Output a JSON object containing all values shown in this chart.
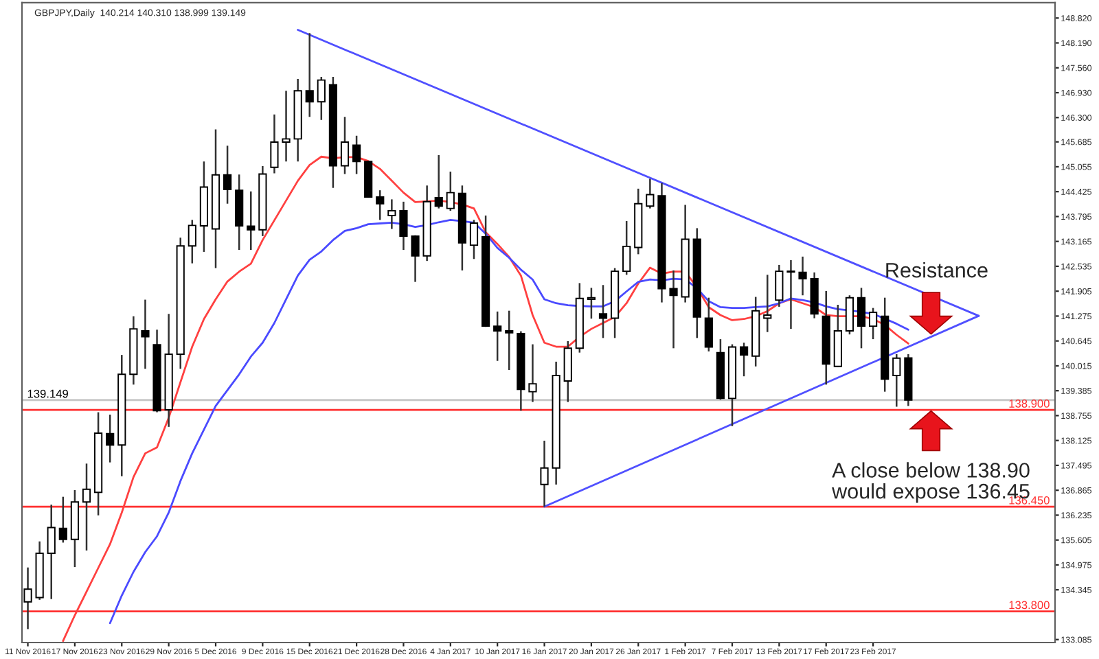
{
  "chart_data": {
    "type": "candlestick",
    "title": "GBPJPY,Daily  140.214 140.310 138.999 139.149",
    "categories": [
      "11 Nov 2016",
      null,
      null,
      null,
      "17 Nov 2016",
      null,
      null,
      null,
      "23 Nov 2016",
      null,
      null,
      null,
      "29 Nov 2016",
      null,
      null,
      null,
      "5 Dec 2016",
      null,
      null,
      null,
      "9 Dec 2016",
      null,
      null,
      null,
      "15 Dec 2016",
      null,
      null,
      null,
      "21 Dec 2016",
      null,
      null,
      null,
      "28 Dec 2016",
      null,
      null,
      null,
      "4 Jan 2017",
      null,
      null,
      null,
      "10 Jan 2017",
      null,
      null,
      null,
      "16 Jan 2017",
      null,
      null,
      null,
      "20 Jan 2017",
      null,
      null,
      null,
      "26 Jan 2017",
      null,
      null,
      null,
      "1 Feb 2017",
      null,
      null,
      null,
      "7 Feb 2017",
      null,
      null,
      null,
      "13 Feb 2017",
      null,
      null,
      null,
      "17 Feb 2017",
      null,
      null,
      null,
      "23 Feb 2017",
      null,
      null,
      null,
      null,
      null,
      null,
      null,
      null,
      null,
      null,
      null,
      null,
      null,
      null,
      null
    ],
    "ohlc": [
      [
        134.04,
        134.91,
        133.35,
        134.36
      ],
      [
        134.15,
        135.57,
        134.09,
        135.27
      ],
      [
        135.27,
        136.5,
        134.11,
        135.92
      ],
      [
        135.9,
        136.7,
        135.54,
        135.62
      ],
      [
        135.62,
        136.87,
        134.92,
        136.57
      ],
      [
        136.57,
        137.54,
        135.34,
        136.89
      ],
      [
        136.81,
        138.84,
        136.23,
        138.31
      ],
      [
        138.3,
        138.78,
        137.57,
        138.01
      ],
      [
        138.01,
        140.29,
        137.22,
        139.8
      ],
      [
        139.8,
        141.27,
        139.54,
        140.95
      ],
      [
        140.9,
        141.69,
        139.94,
        140.75
      ],
      [
        140.55,
        140.93,
        138.84,
        138.88
      ],
      [
        138.9,
        141.33,
        138.47,
        140.31
      ],
      [
        140.31,
        143.26,
        139.94,
        143.05
      ],
      [
        143.05,
        143.71,
        142.61,
        143.57
      ],
      [
        143.56,
        145.19,
        142.9,
        144.54
      ],
      [
        143.48,
        146.0,
        142.49,
        144.85
      ],
      [
        144.85,
        145.59,
        144.12,
        144.48
      ],
      [
        144.46,
        144.86,
        142.95,
        143.56
      ],
      [
        143.55,
        144.43,
        142.95,
        143.46
      ],
      [
        143.46,
        145.07,
        143.3,
        144.87
      ],
      [
        145.04,
        146.38,
        144.89,
        145.68
      ],
      [
        145.68,
        146.98,
        145.19,
        145.76
      ],
      [
        145.76,
        147.28,
        145.19,
        146.98
      ],
      [
        146.98,
        148.44,
        146.32,
        146.7
      ],
      [
        146.7,
        147.33,
        146.24,
        147.25
      ],
      [
        147.13,
        147.33,
        144.52,
        145.08
      ],
      [
        145.08,
        146.32,
        144.87,
        145.68
      ],
      [
        145.6,
        145.84,
        144.87,
        145.19
      ],
      [
        145.19,
        145.21,
        144.27,
        144.29
      ],
      [
        144.29,
        144.46,
        143.71,
        144.12
      ],
      [
        143.82,
        144.23,
        143.48,
        143.94
      ],
      [
        143.94,
        144.17,
        142.95,
        143.3
      ],
      [
        143.3,
        143.32,
        142.14,
        142.8
      ],
      [
        142.8,
        144.58,
        142.67,
        144.17
      ],
      [
        144.27,
        145.35,
        144.0,
        144.06
      ],
      [
        144.0,
        144.93,
        143.94,
        144.4
      ],
      [
        144.38,
        144.58,
        142.43,
        143.13
      ],
      [
        143.07,
        143.71,
        142.72,
        143.63
      ],
      [
        143.28,
        143.82,
        141.0,
        141.02
      ],
      [
        141.02,
        141.39,
        140.14,
        140.9
      ],
      [
        140.9,
        141.41,
        139.91,
        140.85
      ],
      [
        140.83,
        140.89,
        138.88,
        139.42
      ],
      [
        139.36,
        140.56,
        139.1,
        139.56
      ],
      [
        137.01,
        138.12,
        136.45,
        137.43
      ],
      [
        137.43,
        140.12,
        137.01,
        139.77
      ],
      [
        139.63,
        140.64,
        139.1,
        140.46
      ],
      [
        140.46,
        142.11,
        140.35,
        141.72
      ],
      [
        141.7,
        141.99,
        141.21,
        141.74
      ],
      [
        141.33,
        142.06,
        140.72,
        141.22
      ],
      [
        141.22,
        142.49,
        140.72,
        142.41
      ],
      [
        142.41,
        143.68,
        142.32,
        143.04
      ],
      [
        143.01,
        144.5,
        142.84,
        144.12
      ],
      [
        144.06,
        144.75,
        144.0,
        144.35
      ],
      [
        144.32,
        144.64,
        141.62,
        141.97
      ],
      [
        141.97,
        142.43,
        140.46,
        141.8
      ],
      [
        141.76,
        144.09,
        141.62,
        143.22
      ],
      [
        143.22,
        143.5,
        140.72,
        141.25
      ],
      [
        141.22,
        141.74,
        140.38,
        140.49
      ],
      [
        140.35,
        140.69,
        139.16,
        139.19
      ],
      [
        139.19,
        140.56,
        138.49,
        140.49
      ],
      [
        140.49,
        140.6,
        139.75,
        140.29
      ],
      [
        140.26,
        141.76,
        140.0,
        141.41
      ],
      [
        141.22,
        142.32,
        140.87,
        141.3
      ],
      [
        141.68,
        142.57,
        141.51,
        142.41
      ],
      [
        142.41,
        142.69,
        140.95,
        142.39
      ],
      [
        142.38,
        142.78,
        141.8,
        142.22
      ],
      [
        142.22,
        142.38,
        141.22,
        141.33
      ],
      [
        141.27,
        141.91,
        139.54,
        140.06
      ],
      [
        140.0,
        141.56,
        139.98,
        140.9
      ],
      [
        140.9,
        141.8,
        140.81,
        141.74
      ],
      [
        141.74,
        141.99,
        140.46,
        141.02
      ],
      [
        141.02,
        141.48,
        140.69,
        141.37
      ],
      [
        141.27,
        141.74,
        139.36,
        139.68
      ],
      [
        139.77,
        140.31,
        138.98,
        140.21
      ],
      [
        140.214,
        140.31,
        138.999,
        139.149
      ],
      null,
      null,
      null,
      null,
      null,
      null,
      null,
      null,
      null,
      null,
      null,
      null
    ],
    "series": [
      {
        "type": "line",
        "color": "#ff4040",
        "values": [
          null,
          null,
          null,
          133.05,
          133.7,
          134.3,
          134.9,
          135.5,
          136.3,
          137.2,
          137.8,
          137.95,
          138.7,
          139.6,
          140.5,
          141.2,
          141.7,
          142.15,
          142.4,
          142.6,
          143.2,
          143.7,
          144.2,
          144.7,
          145.1,
          145.31,
          145.27,
          145.3,
          145.3,
          145.2,
          145.0,
          144.7,
          144.4,
          144.16,
          144.18,
          144.2,
          144.16,
          144.1,
          144.0,
          143.4,
          143.1,
          142.77,
          142.3,
          141.3,
          140.6,
          140.5,
          140.5,
          140.75,
          140.95,
          141.1,
          141.25,
          141.6,
          142.1,
          142.5,
          142.35,
          142.4,
          142.4,
          142.0,
          141.5,
          141.3,
          141.17,
          141.2,
          141.27,
          141.4,
          141.6,
          141.7,
          141.6,
          141.5,
          141.3,
          141.27,
          141.27,
          141.27,
          141.2,
          141.05,
          140.8,
          140.58,
          null,
          null,
          null,
          null,
          null,
          null,
          null,
          null,
          null,
          null,
          null,
          null
        ]
      },
      {
        "type": "line",
        "color": "#4a4aff",
        "values": [
          null,
          null,
          null,
          null,
          null,
          null,
          null,
          133.5,
          134.2,
          134.8,
          135.3,
          135.7,
          136.3,
          137.1,
          137.8,
          138.4,
          139.0,
          139.4,
          139.8,
          140.25,
          140.6,
          141.1,
          141.7,
          142.3,
          142.7,
          142.91,
          143.2,
          143.43,
          143.5,
          143.6,
          143.62,
          143.64,
          143.6,
          143.53,
          143.58,
          143.65,
          143.71,
          143.68,
          143.64,
          143.36,
          143.0,
          142.75,
          142.45,
          142.2,
          141.7,
          141.6,
          141.55,
          141.53,
          141.52,
          141.52,
          141.65,
          141.9,
          142.14,
          142.2,
          142.18,
          142.22,
          142.2,
          141.98,
          141.65,
          141.5,
          141.48,
          141.48,
          141.5,
          141.52,
          141.6,
          141.72,
          141.68,
          141.62,
          141.52,
          141.45,
          141.42,
          141.38,
          141.33,
          141.21,
          141.08,
          140.93,
          null,
          null,
          null,
          null,
          null,
          null,
          null,
          null,
          null,
          null,
          null,
          null
        ]
      },
      {
        "type": "line",
        "color": "#5050ff",
        "values": [
          null,
          null,
          null,
          null,
          null,
          null,
          null,
          null,
          null,
          null,
          null,
          null,
          null,
          null,
          null,
          null,
          null,
          null,
          null,
          null,
          null,
          null,
          null,
          148.52,
          null,
          null,
          null,
          null,
          null,
          null,
          null,
          null,
          null,
          null,
          null,
          null,
          null,
          null,
          null,
          null,
          null,
          null,
          null,
          null,
          null,
          null,
          null,
          null,
          null,
          null,
          null,
          null,
          null,
          null,
          null,
          null,
          null,
          null,
          null,
          null,
          null,
          null,
          null,
          null,
          null,
          null,
          null,
          null,
          null,
          null,
          null,
          null,
          null,
          null,
          null,
          null,
          null,
          null,
          null,
          null,
          null,
          141.28,
          null,
          null,
          null,
          null,
          null,
          null
        ]
      },
      {
        "type": "line",
        "color": "#5050ff",
        "values": [
          null,
          null,
          null,
          null,
          null,
          null,
          null,
          null,
          null,
          null,
          null,
          null,
          null,
          null,
          null,
          null,
          null,
          null,
          null,
          null,
          null,
          null,
          null,
          null,
          null,
          null,
          null,
          null,
          null,
          null,
          null,
          null,
          null,
          null,
          null,
          null,
          null,
          null,
          null,
          null,
          null,
          null,
          null,
          null,
          136.45,
          null,
          null,
          null,
          null,
          null,
          null,
          null,
          null,
          null,
          null,
          null,
          null,
          null,
          null,
          null,
          null,
          null,
          null,
          null,
          null,
          null,
          null,
          null,
          null,
          null,
          null,
          null,
          null,
          null,
          null,
          null,
          null,
          null,
          null,
          null,
          null,
          141.28,
          null,
          null,
          null,
          null,
          null,
          null
        ]
      }
    ],
    "ylim": [
      133.01,
      149.21
    ],
    "yticks": [
      {
        "value": 148.82,
        "label": "148.820"
      },
      {
        "value": 148.19,
        "label": "148.190"
      },
      {
        "value": 147.56,
        "label": "147.560"
      },
      {
        "value": 146.93,
        "label": "146.930"
      },
      {
        "value": 146.3,
        "label": "146.300"
      },
      {
        "value": 145.685,
        "label": "145.685"
      },
      {
        "value": 145.055,
        "label": "145.055"
      },
      {
        "value": 144.425,
        "label": "144.425"
      },
      {
        "value": 143.795,
        "label": "143.795"
      },
      {
        "value": 143.165,
        "label": "143.165"
      },
      {
        "value": 142.535,
        "label": "142.535"
      },
      {
        "value": 141.905,
        "label": "141.905"
      },
      {
        "value": 141.275,
        "label": "141.275"
      },
      {
        "value": 140.645,
        "label": "140.645"
      },
      {
        "value": 140.015,
        "label": "140.015"
      },
      {
        "value": 139.385,
        "label": "139.385"
      },
      {
        "value": 138.755,
        "label": "138.755"
      },
      {
        "value": 138.125,
        "label": "138.125"
      },
      {
        "value": 137.495,
        "label": "137.495"
      },
      {
        "value": 136.865,
        "label": "136.865"
      },
      {
        "value": 136.235,
        "label": "136.235"
      },
      {
        "value": 135.605,
        "label": "135.605"
      },
      {
        "value": 134.975,
        "label": "134.975"
      },
      {
        "value": 134.345,
        "label": "134.345"
      },
      {
        "value": 133.085,
        "label": "133.085"
      }
    ],
    "ref_lines": [
      {
        "axis": "y",
        "value": 139.149,
        "label": "139.149",
        "color": "#c8c8c8"
      },
      {
        "axis": "y",
        "value": 138.9,
        "label": "138.900",
        "color": "#ff3030"
      },
      {
        "axis": "y",
        "value": 136.45,
        "label": "136.450",
        "color": "#ff3030"
      },
      {
        "axis": "y",
        "value": 133.8,
        "label": "133.800",
        "color": "#ff3030"
      }
    ],
    "annotations": [
      "Resistance",
      "A close below 138.90\nwould expose 136.45"
    ],
    "grid": false,
    "legend": false
  }
}
